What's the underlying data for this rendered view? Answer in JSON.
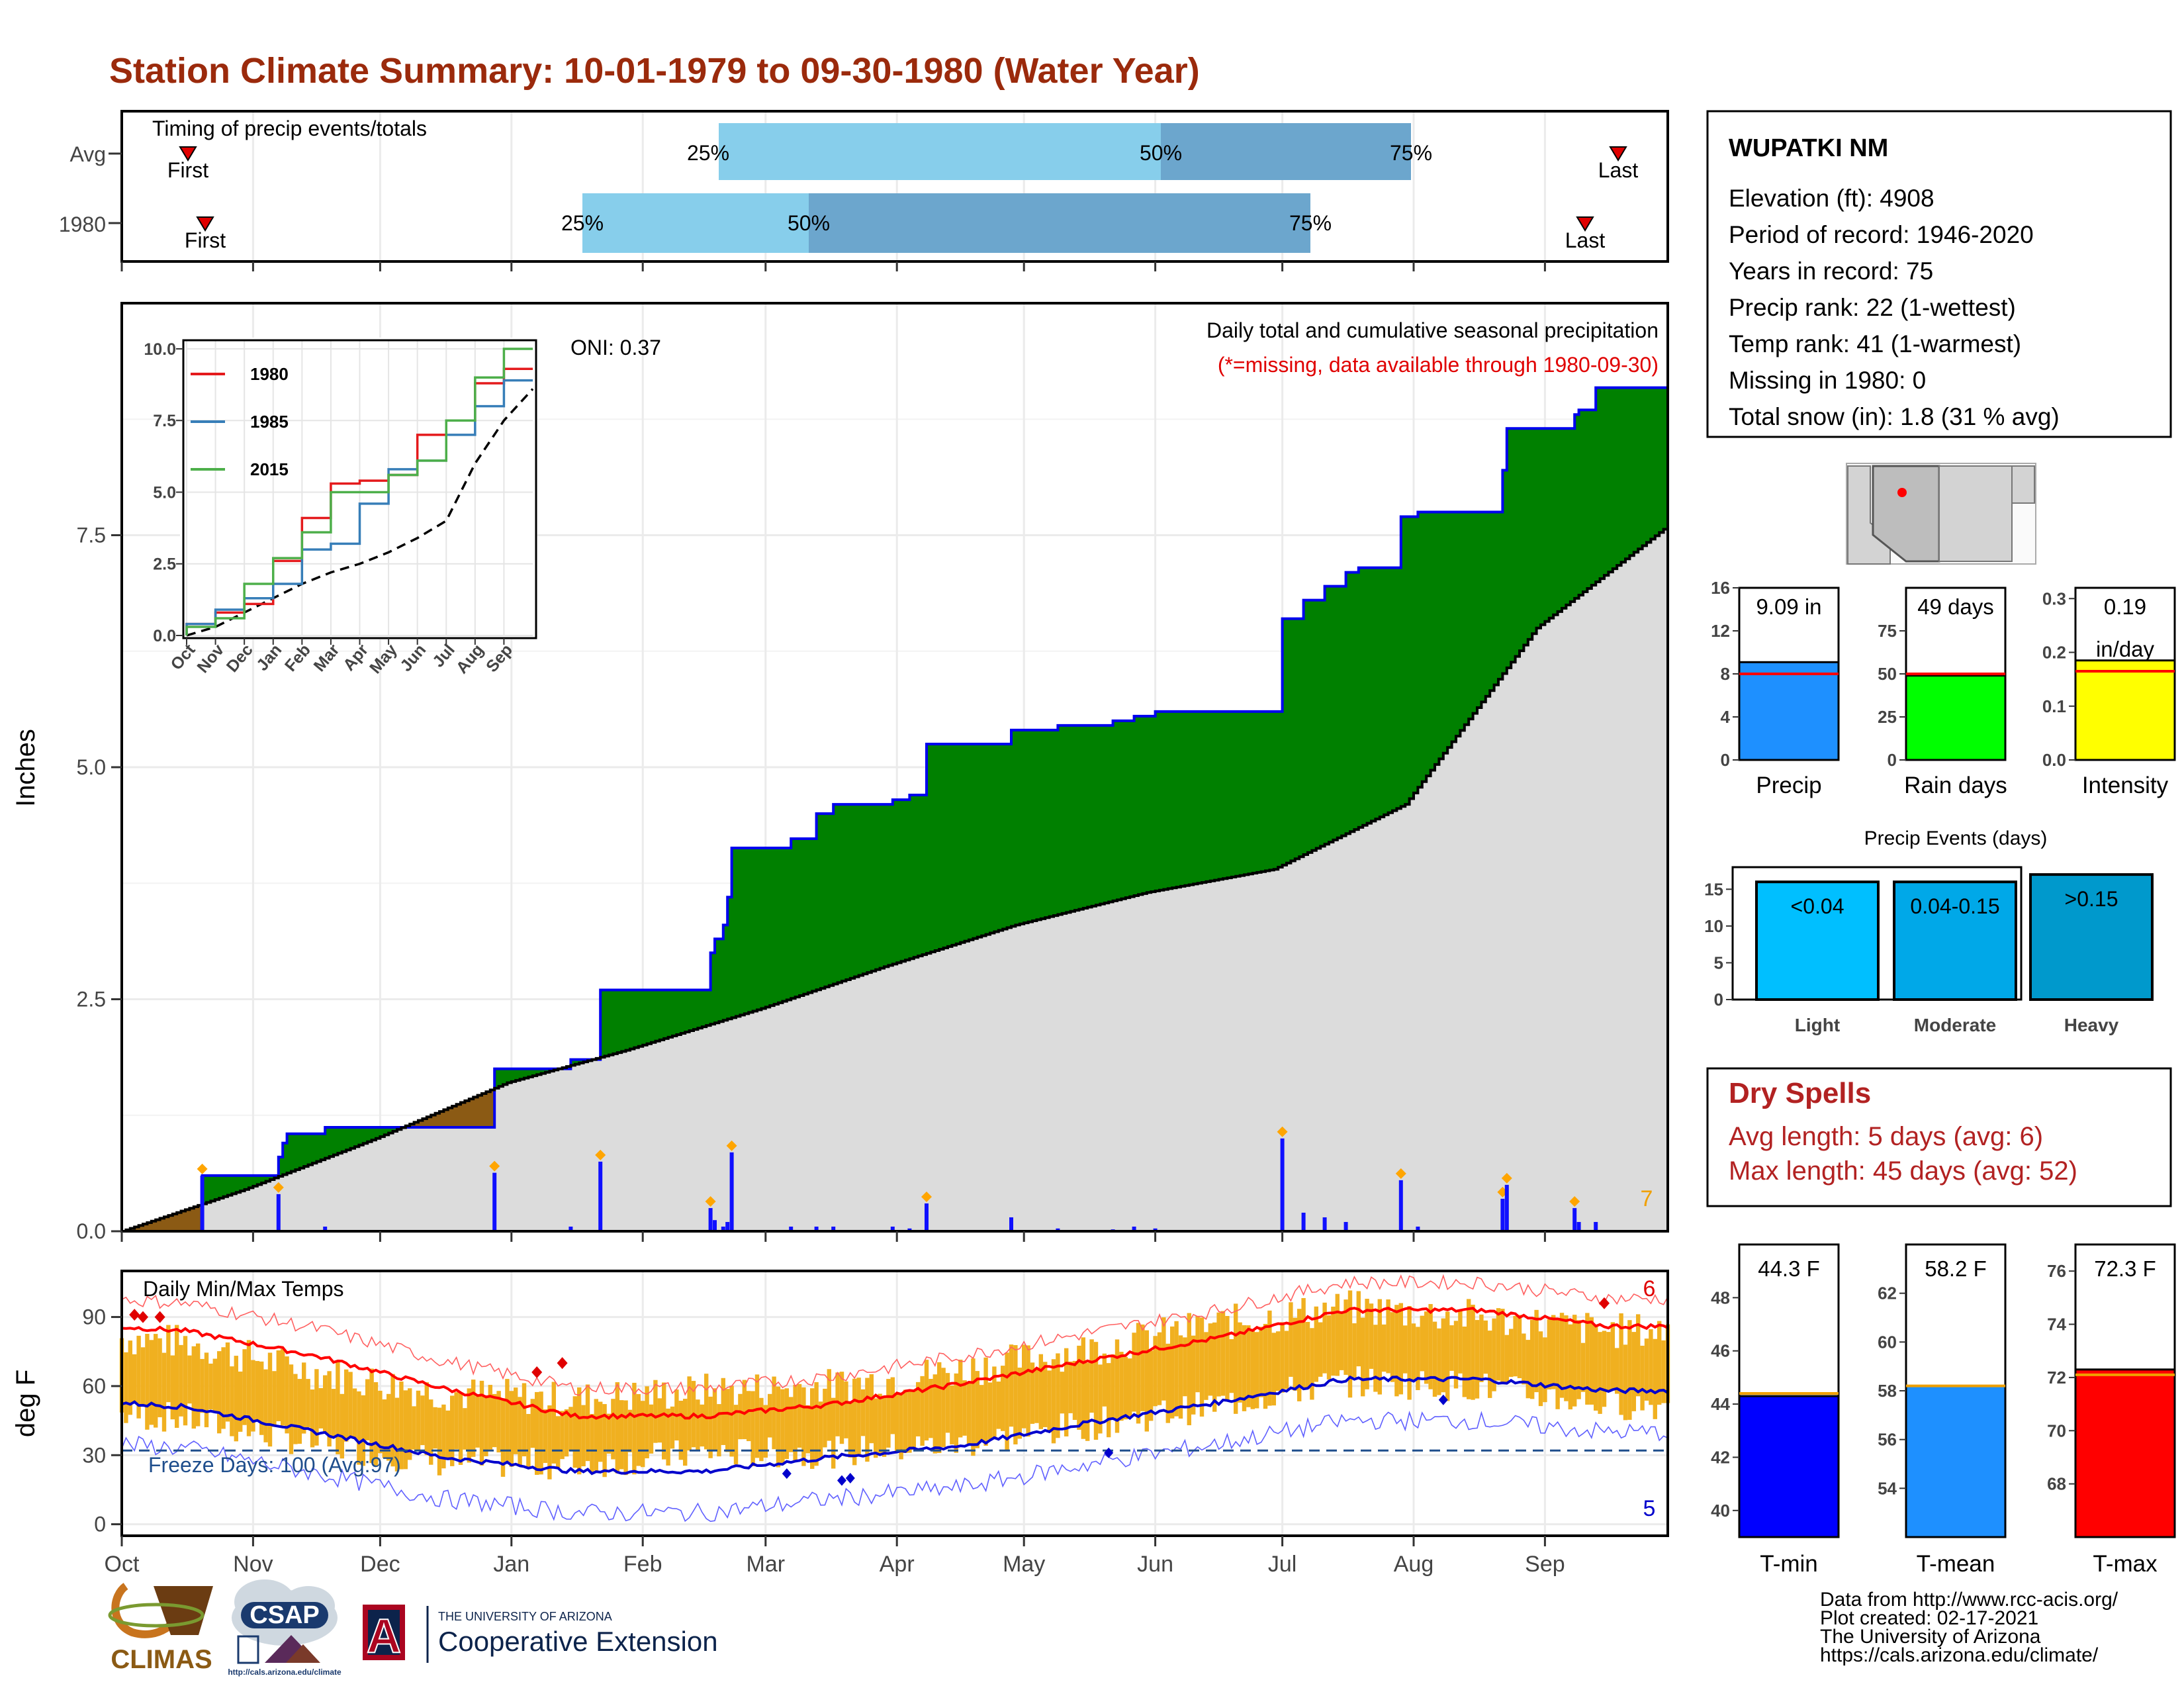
{
  "title": "Station Climate Summary: 10-01-1979 to 09-30-1980 (Water Year)",
  "colors": {
    "title": "#9b2a0c",
    "precip_green": "#008000",
    "deficit_brown": "#8b5a14",
    "normal_gray": "#dcdcdc",
    "blue_line": "#0000ee",
    "temp_bar": "#f0b020",
    "tmax_line": "#ff0000",
    "tmin_line": "#0000cc"
  },
  "timing": {
    "title": "Timing of precip events/totals",
    "rows": [
      "Avg",
      "1980"
    ],
    "avg": {
      "first": "First",
      "p25": "25%",
      "p50": "50%",
      "p75": "75%",
      "last": "Last"
    },
    "yr": {
      "first": "First",
      "p25": "25%",
      "p50": "50%",
      "p75": "75%",
      "last": "Last"
    }
  },
  "main": {
    "oni": "ONI: 0.37",
    "legend1": "Daily total and cumulative seasonal precipitation",
    "legend2": "(*=missing, data available through 1980-09-30)",
    "ylabel": "Inches",
    "yticks": [
      "0.0",
      "2.5",
      "5.0",
      "7.5"
    ],
    "count_label": "7"
  },
  "months": [
    "Oct",
    "Nov",
    "Dec",
    "Jan",
    "Feb",
    "Mar",
    "Apr",
    "May",
    "Jun",
    "Jul",
    "Aug",
    "Sep"
  ],
  "inset": {
    "yticks": [
      "0.0",
      "2.5",
      "5.0",
      "7.5",
      "10.0"
    ],
    "legend": [
      {
        "label": "1980",
        "color": "#e41a1c"
      },
      {
        "label": "1985",
        "color": "#377eb8"
      },
      {
        "label": "2015",
        "color": "#4daf4a"
      }
    ]
  },
  "temps": {
    "title": "Daily Min/Max Temps",
    "ylabel": "deg F",
    "yticks": [
      "0",
      "30",
      "60",
      "90"
    ],
    "freeze": "Freeze Days: 100 (Avg:97)",
    "count_max": "6",
    "count_min": "5"
  },
  "station": {
    "name": "WUPATKI NM",
    "lines": [
      "Elevation (ft): 4908",
      "Period of record: 1946-2020",
      "Years in record: 75",
      "Precip rank: 22 (1-wettest)",
      "Temp rank: 41 (1-warmest)",
      "Missing in 1980: 0",
      "Total snow (in): 1.8 (31 % avg)"
    ]
  },
  "mini_bars": [
    {
      "label": "Precip",
      "value_label": "9.09 in",
      "value": 9.09,
      "avg": 8.0,
      "ymax": 16,
      "ticks": [
        "0",
        "4",
        "8",
        "12",
        "16"
      ],
      "tickvals": [
        0,
        4,
        8,
        12,
        16
      ],
      "color": "#1e90ff"
    },
    {
      "label": "Rain days",
      "value_label": "49 days",
      "value": 49,
      "avg": 50,
      "ymax": 100,
      "ticks": [
        "0",
        "25",
        "50",
        "75"
      ],
      "tickvals": [
        0,
        25,
        50,
        75
      ],
      "color": "#00ff00"
    },
    {
      "label": "Intensity",
      "value_label": "0.19",
      "value_label2": "in/day",
      "value": 0.185,
      "avg": 0.165,
      "ymax": 0.32,
      "ticks": [
        "0.0",
        "0.1",
        "0.2",
        "0.3"
      ],
      "tickvals": [
        0,
        0.1,
        0.2,
        0.3
      ],
      "color": "#ffff00"
    }
  ],
  "events": {
    "title": "Precip Events (days)",
    "yticks": [
      "0",
      "5",
      "10",
      "15"
    ],
    "bars": [
      {
        "label": "Light",
        "range": "<0.04",
        "value": 16,
        "color": "#00bfff"
      },
      {
        "label": "Moderate",
        "range": "0.04-0.15",
        "value": 16,
        "color": "#00a8e8"
      },
      {
        "label": "Heavy",
        "range": ">0.15",
        "value": 17,
        "color": "#0099cc"
      }
    ]
  },
  "dry": {
    "title": "Dry Spells",
    "avg": "Avg length: 5 days (avg: 6)",
    "max": "Max length: 45 days (avg: 52)"
  },
  "temp_bars": [
    {
      "label": "T-min",
      "value_label": "44.3 F",
      "value": 44.3,
      "avg": 44.4,
      "ymin": 39,
      "ymax": 50,
      "ticks": [
        "40",
        "42",
        "44",
        "46",
        "48"
      ],
      "tickvals": [
        40,
        42,
        44,
        46,
        48
      ],
      "color": "#0000ff"
    },
    {
      "label": "T-mean",
      "value_label": "58.2 F",
      "value": 58.2,
      "avg": 58.2,
      "ymin": 52,
      "ymax": 64,
      "ticks": [
        "54",
        "56",
        "58",
        "60",
        "62"
      ],
      "tickvals": [
        54,
        56,
        58,
        60,
        62
      ],
      "color": "#1e90ff"
    },
    {
      "label": "T-max",
      "value_label": "72.3 F",
      "value": 72.3,
      "avg": 72.1,
      "ymin": 66,
      "ymax": 77,
      "ticks": [
        "68",
        "70",
        "72",
        "74",
        "76"
      ],
      "tickvals": [
        68,
        70,
        72,
        74,
        76
      ],
      "color": "#ff0000"
    }
  ],
  "footer": {
    "lines": [
      "Data from http://www.rcc-acis.org/",
      "Plot created: 02-17-2021",
      "The University of Arizona",
      "https://cals.arizona.edu/climate/"
    ],
    "climas": "CLIMAS",
    "csap": "CSAP",
    "csap_url": "http://cals.arizona.edu/climate",
    "ua_small": "THE UNIVERSITY OF ARIZONA",
    "ua_big": "Cooperative Extension",
    "ua_letter": "A"
  },
  "chart_data": [
    {
      "type": "area",
      "title": "Daily total and cumulative seasonal precipitation",
      "ylabel": "Inches",
      "ylim": [
        0,
        10
      ],
      "x_unit": "day of water year (1 = Oct 1)",
      "cumulative_observed": [
        [
          1,
          0.0
        ],
        [
          19,
          0.0
        ],
        [
          20,
          0.6
        ],
        [
          37,
          0.6
        ],
        [
          38,
          0.8
        ],
        [
          39,
          0.95
        ],
        [
          40,
          1.05
        ],
        [
          48,
          1.05
        ],
        [
          49,
          1.12
        ],
        [
          88,
          1.12
        ],
        [
          89,
          1.75
        ],
        [
          106,
          1.75
        ],
        [
          107,
          1.85
        ],
        [
          113,
          1.85
        ],
        [
          114,
          2.6
        ],
        [
          139,
          2.6
        ],
        [
          140,
          3.0
        ],
        [
          141,
          3.15
        ],
        [
          143,
          3.3
        ],
        [
          144,
          3.6
        ],
        [
          145,
          4.13
        ],
        [
          158,
          4.13
        ],
        [
          159,
          4.23
        ],
        [
          164,
          4.23
        ],
        [
          165,
          4.5
        ],
        [
          168,
          4.5
        ],
        [
          169,
          4.6
        ],
        [
          182,
          4.6
        ],
        [
          183,
          4.65
        ],
        [
          186,
          4.65
        ],
        [
          187,
          4.7
        ],
        [
          190,
          4.7
        ],
        [
          191,
          5.25
        ],
        [
          210,
          5.25
        ],
        [
          211,
          5.4
        ],
        [
          221,
          5.4
        ],
        [
          222,
          5.45
        ],
        [
          234,
          5.45
        ],
        [
          235,
          5.5
        ],
        [
          239,
          5.5
        ],
        [
          240,
          5.55
        ],
        [
          244,
          5.55
        ],
        [
          245,
          5.6
        ],
        [
          274,
          5.6
        ],
        [
          275,
          6.6
        ],
        [
          279,
          6.6
        ],
        [
          280,
          6.8
        ],
        [
          284,
          6.8
        ],
        [
          285,
          6.95
        ],
        [
          289,
          6.95
        ],
        [
          290,
          7.1
        ],
        [
          292,
          7.1
        ],
        [
          293,
          7.15
        ],
        [
          302,
          7.15
        ],
        [
          303,
          7.7
        ],
        [
          306,
          7.7
        ],
        [
          307,
          7.75
        ],
        [
          326,
          7.75
        ],
        [
          327,
          8.2
        ],
        [
          328,
          8.65
        ],
        [
          343,
          8.65
        ],
        [
          344,
          8.8
        ],
        [
          345,
          8.85
        ],
        [
          348,
          8.85
        ],
        [
          349,
          9.09
        ],
        [
          366,
          9.09
        ]
      ],
      "cumulative_normal": [
        [
          1,
          0.0
        ],
        [
          30,
          0.45
        ],
        [
          61,
          1.0
        ],
        [
          92,
          1.6
        ],
        [
          120,
          1.95
        ],
        [
          152,
          2.4
        ],
        [
          181,
          2.85
        ],
        [
          212,
          3.3
        ],
        [
          243,
          3.65
        ],
        [
          273,
          3.9
        ],
        [
          304,
          4.6
        ],
        [
          335,
          6.5
        ],
        [
          366,
          7.6
        ]
      ],
      "daily_events": [
        [
          20,
          0.6
        ],
        [
          38,
          0.4
        ],
        [
          49,
          0.05
        ],
        [
          89,
          0.63
        ],
        [
          107,
          0.05
        ],
        [
          114,
          0.75
        ],
        [
          140,
          0.25
        ],
        [
          141,
          0.12
        ],
        [
          143,
          0.05
        ],
        [
          144,
          0.1
        ],
        [
          145,
          0.85
        ],
        [
          159,
          0.05
        ],
        [
          165,
          0.05
        ],
        [
          169,
          0.05
        ],
        [
          183,
          0.05
        ],
        [
          187,
          0.03
        ],
        [
          191,
          0.3
        ],
        [
          211,
          0.15
        ],
        [
          222,
          0.03
        ],
        [
          235,
          0.02
        ],
        [
          240,
          0.05
        ],
        [
          245,
          0.03
        ],
        [
          275,
          1.0
        ],
        [
          280,
          0.2
        ],
        [
          285,
          0.15
        ],
        [
          290,
          0.1
        ],
        [
          303,
          0.55
        ],
        [
          307,
          0.05
        ],
        [
          327,
          0.35
        ],
        [
          328,
          0.5
        ],
        [
          344,
          0.25
        ],
        [
          345,
          0.1
        ],
        [
          349,
          0.1
        ]
      ]
    },
    {
      "type": "line",
      "title": "",
      "ylim": [
        0,
        10
      ],
      "x": [
        "Oct",
        "Nov",
        "Dec",
        "Jan",
        "Feb",
        "Mar",
        "Apr",
        "May",
        "Jun",
        "Jul",
        "Aug",
        "Sep"
      ],
      "series": [
        {
          "name": "1980",
          "values": [
            0.4,
            0.8,
            1.1,
            2.6,
            4.1,
            5.3,
            5.4,
            5.6,
            7.0,
            7.5,
            8.8,
            9.3
          ]
        },
        {
          "name": "1985",
          "values": [
            0.4,
            0.9,
            1.3,
            1.8,
            3.0,
            3.2,
            4.6,
            5.8,
            6.1,
            7.0,
            8.0,
            8.9
          ]
        },
        {
          "name": "2015",
          "values": [
            0.3,
            0.6,
            1.8,
            2.7,
            3.6,
            5.0,
            5.0,
            5.6,
            6.1,
            7.5,
            9.0,
            10.0
          ]
        }
      ],
      "avg_values": [
        0.3,
        0.8,
        1.3,
        1.8,
        2.2,
        2.5,
        2.9,
        3.4,
        4.0,
        6.0,
        7.5,
        8.6
      ]
    },
    {
      "type": "bar",
      "title": "Daily Min/Max Temps",
      "ylabel": "deg F",
      "ylim": [
        -5,
        110
      ],
      "x": [
        "Oct",
        "Nov",
        "Dec",
        "Jan",
        "Feb",
        "Mar",
        "Apr",
        "May",
        "Jun",
        "Jul",
        "Aug",
        "Sep"
      ],
      "series": [
        {
          "name": "",
          "values": [
            79,
            66,
            57,
            54,
            58,
            60,
            67,
            76,
            87,
            94,
            90,
            84
          ]
        },
        {
          "name": "",
          "values": [
            46,
            35,
            27,
            26,
            31,
            31,
            35,
            43,
            52,
            62,
            60,
            52
          ]
        }
      ],
      "avg_max": [
        84,
        73,
        59,
        47,
        47,
        52,
        61,
        71,
        81,
        93,
        93,
        86
      ],
      "avg_min": [
        51,
        40,
        29,
        23,
        23,
        29,
        34,
        44,
        53,
        63,
        63,
        58
      ],
      "freeze_line": 32
    }
  ]
}
